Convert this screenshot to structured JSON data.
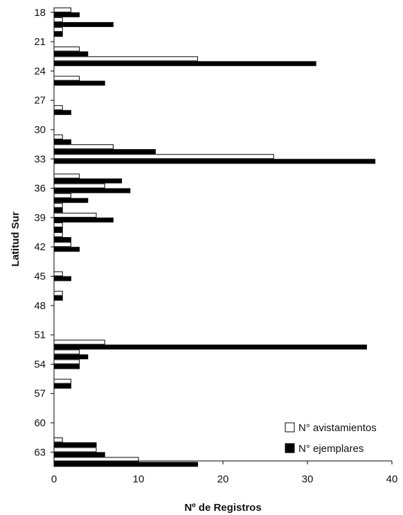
{
  "chart_data": {
    "type": "bar",
    "orientation": "horizontal",
    "xlabel": "Nº de Registros",
    "ylabel": "Latitud Sur",
    "xlim": [
      0,
      40
    ],
    "x_ticks": [
      0,
      10,
      20,
      30,
      40
    ],
    "ylim": [
      17,
      65
    ],
    "y_ticks": [
      18,
      21,
      24,
      27,
      30,
      33,
      36,
      39,
      42,
      45,
      48,
      51,
      54,
      57,
      60,
      63
    ],
    "grid": false,
    "legend_position": "bottom-right",
    "series": [
      {
        "name": "N° avistamientos",
        "color": "#ffffff"
      },
      {
        "name": "N° ejemplares",
        "color": "#000000"
      }
    ],
    "latitudes": [
      18,
      19,
      20,
      22,
      23,
      25,
      28,
      31,
      32,
      33,
      35,
      36,
      37,
      38,
      39,
      40,
      41,
      42,
      45,
      47,
      52,
      53,
      54,
      56,
      62,
      63,
      64
    ],
    "avistamientos": [
      2,
      1,
      1,
      3,
      17,
      3,
      1,
      1,
      7,
      26,
      3,
      6,
      2,
      1,
      5,
      1,
      1,
      2,
      1,
      1,
      6,
      3,
      3,
      2,
      1,
      5,
      10
    ],
    "ejemplares": [
      3,
      7,
      1,
      4,
      31,
      6,
      2,
      2,
      12,
      38,
      8,
      9,
      4,
      1,
      7,
      1,
      2,
      3,
      2,
      1,
      37,
      4,
      3,
      2,
      5,
      6,
      17
    ]
  }
}
